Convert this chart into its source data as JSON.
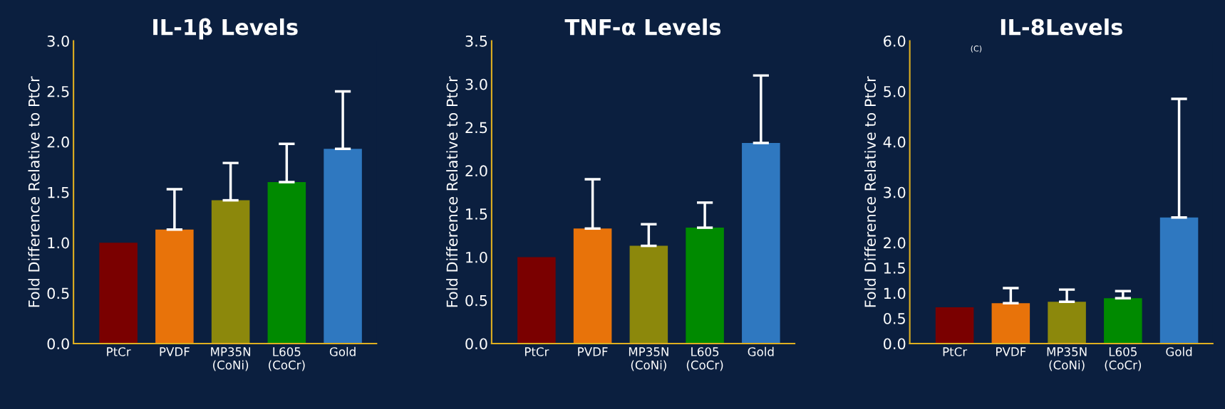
{
  "chart_data": [
    {
      "type": "bar",
      "title": "IL-1β Levels",
      "ylabel": "Fold Difference Relative to PtCr",
      "categories": [
        "PtCr",
        "PVDF",
        "MP35N\n(CoNi)",
        "L605\n(CoCr)",
        "Gold"
      ],
      "values": [
        1.0,
        1.13,
        1.42,
        1.6,
        1.93
      ],
      "colors": [
        "#7a0000",
        "#e8730a",
        "#8c880c",
        "#008a00",
        "#2f78c0"
      ],
      "errors": [
        null,
        [
          1.13,
          1.53
        ],
        [
          1.42,
          1.79
        ],
        [
          1.6,
          1.98
        ],
        [
          1.93,
          2.5
        ]
      ],
      "ylim": [
        0,
        3.0
      ],
      "yticks": [
        {
          "value": 0,
          "label": "0.0"
        },
        0.5,
        {
          "value": 1,
          "label": "1.0"
        },
        1.5,
        {
          "value": 2,
          "label": "2.0"
        },
        2.5,
        {
          "value": 3,
          "label": "3.0"
        }
      ],
      "grid": false,
      "legend": false
    },
    {
      "type": "bar",
      "title": "TNF-α Levels",
      "ylabel": "Fold Difference Relative to PtCr",
      "categories": [
        "PtCr",
        "PVDF",
        "MP35N\n(CoNi)",
        "L605\n(CoCr)",
        "Gold"
      ],
      "values": [
        1.0,
        1.33,
        1.13,
        1.34,
        2.32
      ],
      "colors": [
        "#7a0000",
        "#e8730a",
        "#8c880c",
        "#008a00",
        "#2f78c0"
      ],
      "errors": [
        null,
        [
          1.33,
          1.9
        ],
        [
          1.13,
          1.38
        ],
        [
          1.34,
          1.63
        ],
        [
          2.32,
          3.1
        ]
      ],
      "ylim": [
        0,
        3.5
      ],
      "yticks": [
        {
          "value": 0,
          "label": "0.0"
        },
        0.5,
        {
          "value": 1,
          "label": "1.0"
        },
        1.5,
        {
          "value": 2,
          "label": "2.0"
        },
        2.5,
        {
          "value": 3,
          "label": "3.0"
        },
        3.5
      ],
      "grid": false,
      "legend": false
    },
    {
      "type": "bar",
      "title": "IL-8Levels",
      "ylabel": "Fold Difference Relative to PtCr",
      "categories": [
        "PtCr",
        "PVDF",
        "MP35N\n(CoNi)",
        "L605\n(CoCr)",
        "Gold"
      ],
      "values": [
        0.72,
        0.8,
        0.83,
        0.9,
        2.5
      ],
      "colors": [
        "#7a0000",
        "#e8730a",
        "#8c880c",
        "#008a00",
        "#2f78c0"
      ],
      "errors": [
        null,
        [
          0.8,
          1.1
        ],
        [
          0.83,
          1.07
        ],
        [
          0.9,
          1.04
        ],
        [
          2.5,
          4.85
        ]
      ],
      "ylim": [
        0,
        6.0
      ],
      "yticks": [
        {
          "value": 0,
          "label": "0.0"
        },
        0.5,
        {
          "value": 1,
          "label": "1.0"
        },
        1.5,
        {
          "value": 2,
          "label": "2.0"
        },
        {
          "value": 3,
          "label": "3.0"
        },
        {
          "value": 4,
          "label": "4.0"
        },
        {
          "value": 5,
          "label": "5.0"
        },
        {
          "value": 6,
          "label": "6.0"
        }
      ],
      "annotations": [
        "(C)"
      ],
      "grid": false,
      "legend": false
    }
  ]
}
